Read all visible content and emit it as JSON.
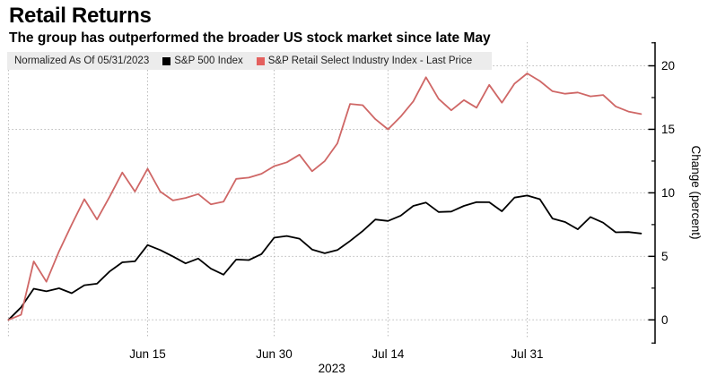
{
  "header": {
    "title": "Retail Returns",
    "subtitle": "The group has outperformed the broader US stock market since late May"
  },
  "legend": {
    "note": "Normalized As Of 05/31/2023"
  },
  "axis": {
    "y_title": "Change (percent)",
    "year_label": "2023"
  },
  "colors": {
    "grid": "#bcbcbc",
    "axis": "#000000",
    "legend_bg": "#ececec",
    "sp500": "#000000",
    "retail": "#cf6766",
    "retail_swatch": "#e4605e"
  },
  "chart_data": {
    "type": "line",
    "title": "Retail Returns",
    "subtitle": "The group has outperformed the broader US stock market since late May",
    "note": "Normalized As Of 05/31/2023",
    "ylabel": "Change (percent)",
    "ylim": [
      -2,
      22
    ],
    "y_ticks": [
      0,
      5,
      10,
      15,
      20
    ],
    "y_minor_ticks": [
      2.5,
      7.5,
      12.5,
      17.5
    ],
    "grid": "dotted",
    "legend_position": "top",
    "year": "2023",
    "x_dates": [
      "05/31",
      "06/01",
      "06/02",
      "06/05",
      "06/06",
      "06/07",
      "06/08",
      "06/09",
      "06/12",
      "06/13",
      "06/14",
      "06/15",
      "06/16",
      "06/20",
      "06/21",
      "06/22",
      "06/23",
      "06/26",
      "06/27",
      "06/28",
      "06/29",
      "06/30",
      "07/03",
      "07/05",
      "07/06",
      "07/07",
      "07/10",
      "07/11",
      "07/12",
      "07/13",
      "07/14",
      "07/17",
      "07/18",
      "07/19",
      "07/20",
      "07/21",
      "07/24",
      "07/25",
      "07/26",
      "07/27",
      "07/28",
      "07/31",
      "08/01",
      "08/02",
      "08/03",
      "08/04",
      "08/07",
      "08/08",
      "08/09",
      "08/10",
      "08/11"
    ],
    "x_ticks": [
      {
        "index": 11,
        "label": "Jun 15"
      },
      {
        "index": 21,
        "label": "Jun 30"
      },
      {
        "index": 30,
        "label": "Jul 14"
      },
      {
        "index": 41,
        "label": "Jul 31"
      }
    ],
    "x_gridlines_unlabeled": [
      0
    ],
    "series": [
      {
        "name": "S&P 500 Index",
        "color": "#000000",
        "swatch_color": "#000000",
        "values": [
          0,
          0.99,
          2.45,
          2.25,
          2.49,
          2.1,
          2.73,
          2.85,
          3.81,
          4.53,
          4.61,
          5.89,
          5.5,
          5.0,
          4.45,
          4.83,
          4.03,
          3.56,
          4.75,
          4.71,
          5.18,
          6.47,
          6.6,
          6.39,
          5.54,
          5.24,
          5.5,
          6.21,
          6.99,
          7.9,
          7.79,
          8.2,
          8.97,
          9.23,
          8.49,
          8.53,
          8.97,
          9.27,
          9.26,
          8.55,
          9.63,
          9.79,
          9.5,
          7.98,
          7.7,
          7.13,
          8.1,
          7.65,
          6.89,
          6.91,
          6.8
        ]
      },
      {
        "name": "S&P Retail Select Industry Index - Last Price",
        "color": "#cf6766",
        "swatch_color": "#e4605e",
        "values": [
          0,
          0.4,
          4.6,
          3.0,
          5.4,
          7.5,
          9.5,
          7.9,
          9.7,
          11.6,
          10.1,
          11.9,
          10.1,
          9.4,
          9.6,
          9.9,
          9.1,
          9.3,
          11.1,
          11.2,
          11.5,
          12.1,
          12.4,
          13.0,
          11.7,
          12.5,
          13.9,
          17.0,
          16.9,
          15.8,
          15.0,
          16.0,
          17.2,
          19.1,
          17.4,
          16.5,
          17.3,
          16.7,
          18.5,
          17.1,
          18.6,
          19.4,
          18.8,
          18.0,
          17.8,
          17.9,
          17.6,
          17.7,
          16.8,
          16.4,
          16.2
        ]
      }
    ]
  }
}
